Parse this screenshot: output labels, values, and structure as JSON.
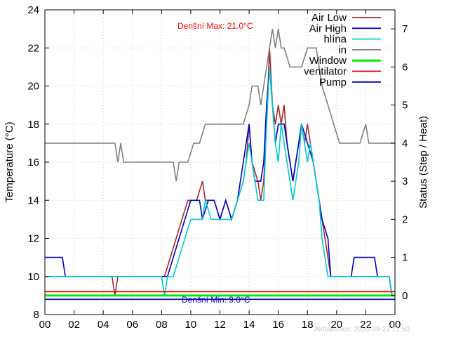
{
  "chart_data": {
    "type": "line",
    "xlabel": "",
    "ylabel": "Temperature (°C)",
    "y2label": "Status (Step / Heat)",
    "xlim": [
      0,
      24
    ],
    "ylim": [
      8,
      24
    ],
    "y2lim": [
      -0.5,
      7.5
    ],
    "x_ticks": [
      "00",
      "02",
      "04",
      "06",
      "08",
      "10",
      "12",
      "14",
      "16",
      "18",
      "20",
      "22",
      "00"
    ],
    "y_ticks": [
      "8",
      "10",
      "12",
      "14",
      "16",
      "18",
      "20",
      "22",
      "24"
    ],
    "y2_ticks": [
      "0",
      "1",
      "2",
      "3",
      "4",
      "5",
      "6",
      "7"
    ],
    "grid": true,
    "legend_position": "top-right",
    "annotations": {
      "max": {
        "text": "Denšní Max: 21.0°C",
        "color": "#ff0000"
      },
      "min": {
        "text": "Denšní Min: 9.0°C",
        "color": "#0000cc"
      },
      "update": "Aktualizace: 2020-09-22 21:50"
    },
    "series": [
      {
        "name": "Air Low",
        "color": "#a52a2a",
        "axis": "y",
        "points": [
          [
            0,
            10
          ],
          [
            4.6,
            10
          ],
          [
            4.8,
            9
          ],
          [
            5.0,
            10
          ],
          [
            8.2,
            10
          ],
          [
            8.6,
            11
          ],
          [
            9.0,
            12
          ],
          [
            9.4,
            13
          ],
          [
            9.8,
            14
          ],
          [
            10.4,
            14
          ],
          [
            10.8,
            15
          ],
          [
            11.0,
            14
          ],
          [
            11.6,
            14
          ],
          [
            12.0,
            13
          ],
          [
            12.4,
            14
          ],
          [
            12.8,
            13
          ],
          [
            13.2,
            14
          ],
          [
            13.6,
            15
          ],
          [
            13.8,
            16
          ],
          [
            14.0,
            18
          ],
          [
            14.2,
            16
          ],
          [
            14.6,
            15
          ],
          [
            14.8,
            14
          ],
          [
            15.0,
            15
          ],
          [
            15.2,
            18
          ],
          [
            15.4,
            22
          ],
          [
            15.6,
            19
          ],
          [
            15.8,
            18
          ],
          [
            16.0,
            19
          ],
          [
            16.2,
            18
          ],
          [
            16.4,
            19
          ],
          [
            16.6,
            17
          ],
          [
            16.8,
            16
          ],
          [
            17.0,
            15
          ],
          [
            17.2,
            16
          ],
          [
            17.4,
            17
          ],
          [
            17.6,
            18
          ],
          [
            17.8,
            17
          ],
          [
            18.0,
            18
          ],
          [
            18.2,
            17
          ],
          [
            18.4,
            16
          ],
          [
            18.6,
            15
          ],
          [
            18.8,
            14
          ],
          [
            19.0,
            13
          ],
          [
            19.2,
            12
          ],
          [
            19.4,
            11
          ],
          [
            19.6,
            10
          ],
          [
            23.6,
            10
          ],
          [
            23.8,
            9
          ]
        ]
      },
      {
        "name": "Air High",
        "color": "#0000cc",
        "axis": "y",
        "points": [
          [
            0,
            11
          ],
          [
            1.2,
            11
          ],
          [
            1.4,
            10
          ],
          [
            4.8,
            10
          ],
          [
            5.0,
            10
          ],
          [
            8.4,
            10
          ],
          [
            8.8,
            11
          ],
          [
            9.2,
            12
          ],
          [
            9.6,
            13
          ],
          [
            10.0,
            14
          ],
          [
            10.6,
            14
          ],
          [
            10.8,
            13
          ],
          [
            11.2,
            14
          ],
          [
            11.6,
            14
          ],
          [
            12.0,
            13
          ],
          [
            12.4,
            14
          ],
          [
            12.8,
            13
          ],
          [
            13.2,
            14
          ],
          [
            13.4,
            15
          ],
          [
            13.6,
            16
          ],
          [
            13.8,
            17
          ],
          [
            14.0,
            18
          ],
          [
            14.2,
            16
          ],
          [
            14.4,
            15
          ],
          [
            14.8,
            15
          ],
          [
            15.0,
            16
          ],
          [
            15.2,
            19
          ],
          [
            15.4,
            21
          ],
          [
            15.6,
            19
          ],
          [
            15.8,
            17
          ],
          [
            16.0,
            18
          ],
          [
            16.4,
            18
          ],
          [
            16.6,
            17
          ],
          [
            16.8,
            16
          ],
          [
            17.0,
            15
          ],
          [
            17.2,
            16
          ],
          [
            17.4,
            17
          ],
          [
            17.6,
            18
          ],
          [
            18.0,
            17
          ],
          [
            18.4,
            16
          ],
          [
            18.6,
            15
          ],
          [
            18.8,
            14
          ],
          [
            19.0,
            13
          ],
          [
            19.4,
            12
          ],
          [
            19.6,
            10
          ],
          [
            21.0,
            10
          ],
          [
            21.2,
            11
          ],
          [
            22.6,
            11
          ],
          [
            22.8,
            10
          ],
          [
            23.6,
            10
          ],
          [
            23.8,
            9
          ]
        ]
      },
      {
        "name": "hlína",
        "color": "#00cccc",
        "axis": "y",
        "points": [
          [
            0,
            10
          ],
          [
            8.0,
            10
          ],
          [
            8.2,
            9
          ],
          [
            8.4,
            10
          ],
          [
            8.8,
            10
          ],
          [
            9.2,
            11
          ],
          [
            9.6,
            12
          ],
          [
            10.0,
            13
          ],
          [
            10.8,
            13
          ],
          [
            11.0,
            14
          ],
          [
            11.4,
            13
          ],
          [
            12.8,
            13
          ],
          [
            13.2,
            14
          ],
          [
            13.6,
            15
          ],
          [
            13.8,
            16
          ],
          [
            14.0,
            17
          ],
          [
            14.2,
            16
          ],
          [
            14.6,
            14
          ],
          [
            15.0,
            14
          ],
          [
            15.2,
            18
          ],
          [
            15.4,
            21
          ],
          [
            15.6,
            19
          ],
          [
            15.8,
            17
          ],
          [
            16.0,
            16
          ],
          [
            16.2,
            18
          ],
          [
            16.4,
            17
          ],
          [
            16.6,
            16
          ],
          [
            16.8,
            15
          ],
          [
            17.0,
            14
          ],
          [
            17.2,
            15
          ],
          [
            17.4,
            16
          ],
          [
            17.6,
            18
          ],
          [
            17.8,
            17
          ],
          [
            18.0,
            16
          ],
          [
            18.2,
            17
          ],
          [
            18.4,
            16
          ],
          [
            18.6,
            15
          ],
          [
            18.8,
            14
          ],
          [
            19.0,
            12
          ],
          [
            19.2,
            11
          ],
          [
            19.4,
            10
          ],
          [
            23.6,
            10
          ],
          [
            23.8,
            9
          ]
        ]
      },
      {
        "name": "in",
        "color": "#808080",
        "axis": "y",
        "points": [
          [
            0,
            17
          ],
          [
            4.8,
            17
          ],
          [
            5.0,
            16
          ],
          [
            5.2,
            17
          ],
          [
            5.4,
            16
          ],
          [
            8.8,
            16
          ],
          [
            9.0,
            15
          ],
          [
            9.2,
            16
          ],
          [
            9.8,
            16
          ],
          [
            10.2,
            17
          ],
          [
            10.6,
            17
          ],
          [
            11.0,
            18
          ],
          [
            13.6,
            18
          ],
          [
            14.0,
            19
          ],
          [
            14.2,
            20
          ],
          [
            14.6,
            20
          ],
          [
            14.8,
            19
          ],
          [
            15.0,
            20
          ],
          [
            15.4,
            22
          ],
          [
            15.6,
            23
          ],
          [
            15.8,
            22
          ],
          [
            16.0,
            23
          ],
          [
            16.2,
            22
          ],
          [
            16.4,
            22
          ],
          [
            16.8,
            21
          ],
          [
            17.6,
            21
          ],
          [
            18.0,
            22
          ],
          [
            18.6,
            22
          ],
          [
            18.8,
            21
          ],
          [
            19.0,
            20
          ],
          [
            19.4,
            19
          ],
          [
            19.8,
            18
          ],
          [
            20.2,
            17
          ],
          [
            21.6,
            17
          ],
          [
            22.0,
            18
          ],
          [
            22.2,
            17
          ],
          [
            24.0,
            17
          ]
        ]
      },
      {
        "name": "Window",
        "color": "#00ee00",
        "axis": "y2",
        "width": 3,
        "points": [
          [
            0,
            0
          ],
          [
            24,
            0
          ]
        ]
      },
      {
        "name": "ventilator",
        "color": "#dd0000",
        "axis": "y2",
        "points": [
          [
            0,
            0.1
          ],
          [
            24,
            0.1
          ]
        ]
      },
      {
        "name": "Pump",
        "color": "#0000aa",
        "axis": "y2",
        "points": [
          [
            0,
            -0.1
          ],
          [
            24,
            -0.1
          ]
        ]
      }
    ]
  }
}
